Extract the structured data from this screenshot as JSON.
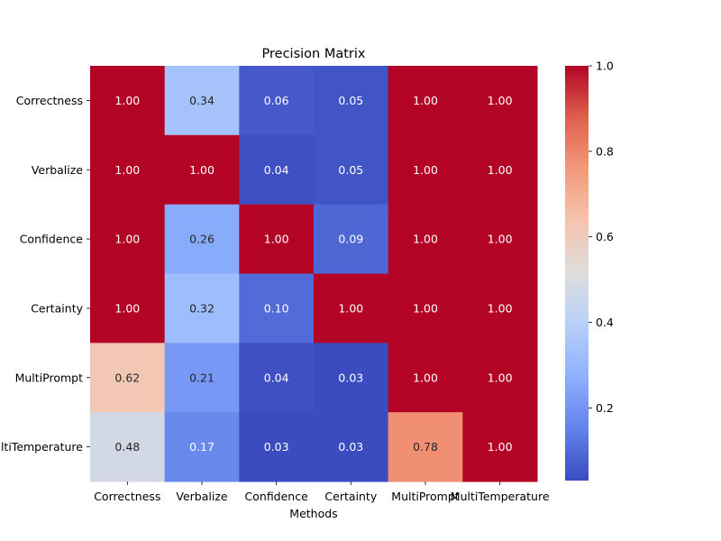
{
  "chart_data": {
    "type": "heatmap",
    "title": "Precision Matrix",
    "xlabel": "Methods",
    "ylabel": "",
    "x_categories": [
      "Correctness",
      "Verbalize",
      "Confidence",
      "Certainty",
      "MultiPrompt",
      "MultiTemperature"
    ],
    "y_categories": [
      "Correctness",
      "Verbalize",
      "Confidence",
      "Certainty",
      "MultiPrompt",
      "MultiTemperature"
    ],
    "values": [
      [
        1.0,
        0.34,
        0.06,
        0.05,
        1.0,
        1.0
      ],
      [
        1.0,
        1.0,
        0.04,
        0.05,
        1.0,
        1.0
      ],
      [
        1.0,
        0.26,
        1.0,
        0.09,
        1.0,
        1.0
      ],
      [
        1.0,
        0.32,
        0.1,
        1.0,
        1.0,
        1.0
      ],
      [
        0.62,
        0.21,
        0.04,
        0.03,
        1.0,
        1.0
      ],
      [
        0.48,
        0.17,
        0.03,
        0.03,
        0.78,
        1.0
      ]
    ],
    "value_format": "2 decimals",
    "colormap": "coolwarm",
    "colorbar": {
      "range": [
        0.03,
        1.0
      ],
      "ticks": [
        0.2,
        0.4,
        0.6,
        0.8,
        1.0
      ],
      "tick_labels": [
        "0.2",
        "0.4",
        "0.6",
        "0.8",
        "1.0"
      ]
    },
    "grid": false,
    "legend": "colorbar right"
  }
}
